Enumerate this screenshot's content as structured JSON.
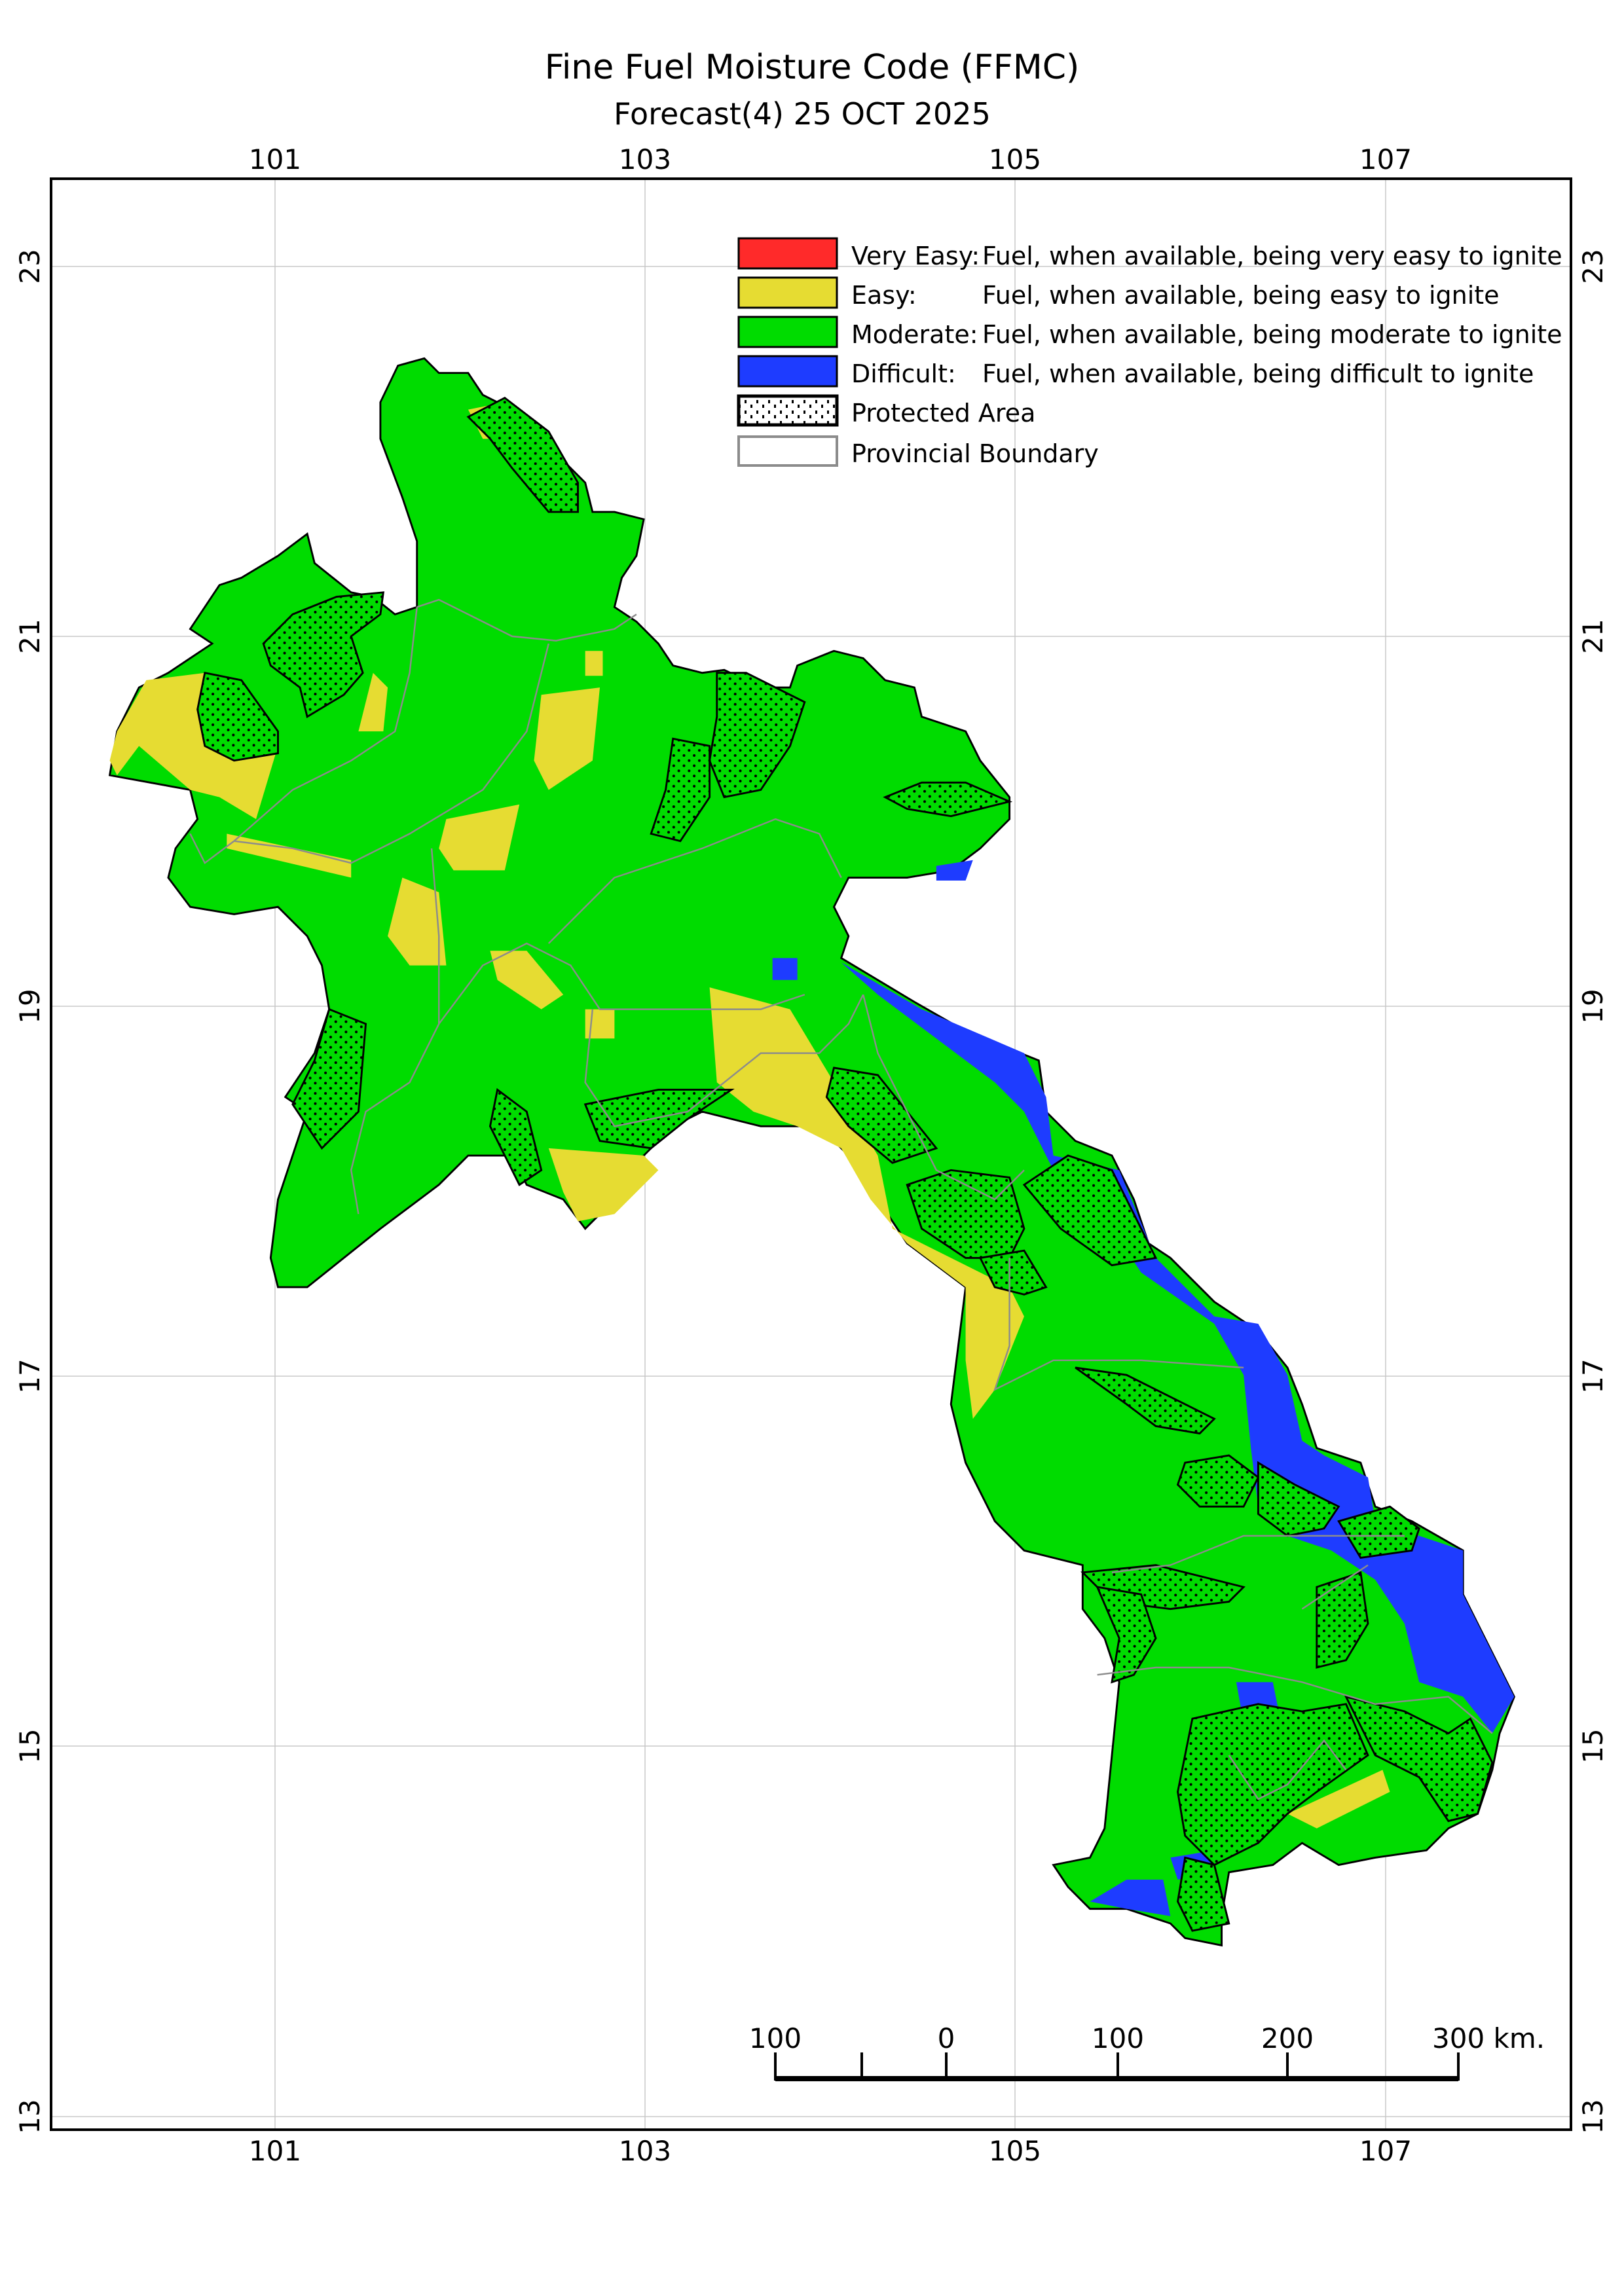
{
  "title": "Fine Fuel Moisture Code (FFMC)",
  "subtitle": "Forecast(4) 25 OCT 2025",
  "axes": {
    "longitude_ticks": [
      "101",
      "103",
      "105",
      "107"
    ],
    "latitude_ticks": [
      "23",
      "21",
      "19",
      "17",
      "15",
      "13"
    ]
  },
  "legend": {
    "items": [
      {
        "label": "Very Easy:",
        "description": "Fuel, when available, being very easy to ignite",
        "color": "#ff2a2a"
      },
      {
        "label": "Easy:",
        "description": "Fuel, when available, being easy to ignite",
        "color": "#e6dc32"
      },
      {
        "label": "Moderate:",
        "description": "Fuel, when available, being moderate to ignite",
        "color": "#00dc00"
      },
      {
        "label": "Difficult:",
        "description": "Fuel, when available, being difficult to ignite",
        "color": "#1e3cff"
      },
      {
        "label": "Protected Area",
        "description": "",
        "symbol": "dotted-black-outline"
      },
      {
        "label": "Provincial Boundary",
        "description": "",
        "symbol": "gray-outline",
        "color": "#8c8c8c"
      }
    ]
  },
  "scale_bar": {
    "labels": [
      "100",
      "0",
      "100",
      "200",
      "300 km."
    ]
  }
}
